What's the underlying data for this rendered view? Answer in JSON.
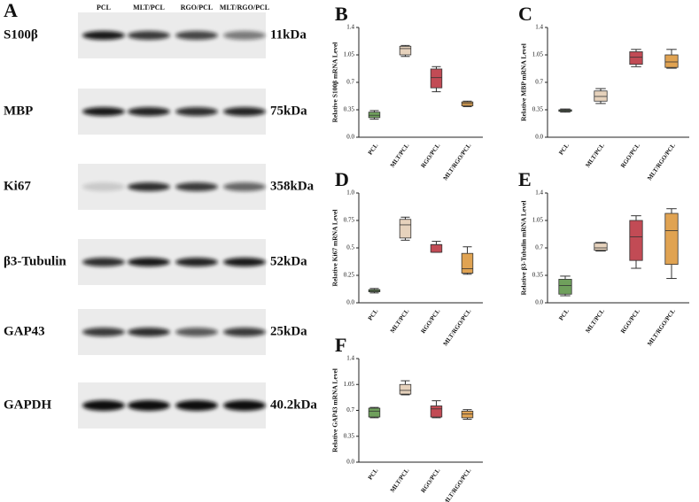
{
  "blot": {
    "panel": "A",
    "lanes": [
      "PCL",
      "MLT/PCL",
      "RGO/PCL",
      "MLT/RGO/PCL"
    ],
    "rows": [
      {
        "label": "S100β",
        "size": "11kDa"
      },
      {
        "label": "MBP",
        "size": "75kDa"
      },
      {
        "label": "Ki67",
        "size": "358kDa"
      },
      {
        "label": "β3-Tubulin",
        "size": "52kDa"
      },
      {
        "label": "GAP43",
        "size": "25kDa"
      },
      {
        "label": "GAPDH",
        "size": "40.2kDa"
      }
    ]
  },
  "chart_data": [
    {
      "type": "box",
      "panel": "B",
      "ylabel": "Relative S100β mRNA Level",
      "categories": [
        "PCL",
        "MLT/PCL",
        "RGO/PCL",
        "MLT/RGO/PCL"
      ],
      "colors": [
        "#6fa05c",
        "#e6d2bc",
        "#c24b55",
        "#e0a352"
      ],
      "boxes": [
        [
          0.23,
          0.25,
          0.28,
          0.32,
          0.34
        ],
        [
          1.03,
          1.05,
          1.13,
          1.16,
          1.17
        ],
        [
          0.58,
          0.63,
          0.76,
          0.87,
          0.9
        ],
        [
          0.39,
          0.4,
          0.43,
          0.45,
          0.46
        ]
      ],
      "ylim": [
        0,
        1.4
      ],
      "yticks": [
        {
          "value": 0,
          "label": "0.0"
        },
        0.35,
        0.7,
        1.05,
        1.4
      ]
    },
    {
      "type": "box",
      "panel": "C",
      "ylabel": "Relative MBP mRNA Level",
      "categories": [
        "PCL",
        "MLT/PCL",
        "RGO/PCL",
        "MLT/RGO/PCL"
      ],
      "colors": [
        "#6fa05c",
        "#e6d2bc",
        "#c24b55",
        "#e0a352"
      ],
      "boxes": [
        [
          0.32,
          0.33,
          0.34,
          0.35,
          0.36
        ],
        [
          0.43,
          0.46,
          0.52,
          0.59,
          0.62
        ],
        [
          0.9,
          0.93,
          1.02,
          1.09,
          1.12
        ],
        [
          0.88,
          0.89,
          0.96,
          1.05,
          1.12
        ]
      ],
      "ylim": [
        0,
        1.4
      ],
      "yticks": [
        {
          "value": 0,
          "label": "0.0"
        },
        0.35,
        0.7,
        1.05,
        1.4
      ]
    },
    {
      "type": "box",
      "panel": "D",
      "ylabel": "Relative Ki67 mRNA Level",
      "categories": [
        "PCL",
        "MLT/PCL",
        "RGO/PCL",
        "MLT/RGO/PCL"
      ],
      "colors": [
        "#6fa05c",
        "#e6d2bc",
        "#c24b55",
        "#e0a352"
      ],
      "boxes": [
        [
          0.09,
          0.1,
          0.11,
          0.12,
          0.13
        ],
        [
          0.57,
          0.59,
          0.71,
          0.76,
          0.78
        ],
        [
          0.46,
          0.46,
          0.53,
          0.53,
          0.56
        ],
        [
          0.26,
          0.27,
          0.31,
          0.45,
          0.51
        ]
      ],
      "ylim": [
        0,
        1
      ],
      "yticks": [
        {
          "value": 0,
          "label": "0.0"
        },
        0.25,
        0.5,
        0.75,
        {
          "value": 1,
          "label": "1.0"
        }
      ]
    },
    {
      "type": "box",
      "panel": "E",
      "ylabel": "Relative β3-Tubulin mRNA Level",
      "categories": [
        "PCL",
        "MLT/PCL",
        "RGO/PCL",
        "MLT/RGO/PCL"
      ],
      "colors": [
        "#6fa05c",
        "#e6d2bc",
        "#c24b55",
        "#e0a352"
      ],
      "boxes": [
        [
          0.09,
          0.11,
          0.22,
          0.3,
          0.34
        ],
        [
          0.66,
          0.67,
          0.7,
          0.76,
          0.77
        ],
        [
          0.44,
          0.54,
          0.84,
          1.05,
          1.11
        ],
        [
          0.31,
          0.49,
          0.92,
          1.14,
          1.2
        ]
      ],
      "ylim": [
        0,
        1.4
      ],
      "yticks": [
        {
          "value": 0,
          "label": "0.0"
        },
        0.35,
        0.7,
        1.05,
        1.4
      ]
    },
    {
      "type": "box",
      "panel": "F",
      "ylabel": "Relative GAP43 mRNA Level",
      "categories": [
        "PCL",
        "MLT/PCL",
        "RGO/PCL",
        "MLT/RGO/PCL"
      ],
      "colors": [
        "#6fa05c",
        "#e6d2bc",
        "#c24b55",
        "#e0a352"
      ],
      "boxes": [
        [
          0.6,
          0.61,
          0.69,
          0.73,
          0.74
        ],
        [
          0.91,
          0.92,
          0.97,
          1.05,
          1.1
        ],
        [
          0.6,
          0.61,
          0.72,
          0.76,
          0.83
        ],
        [
          0.58,
          0.6,
          0.65,
          0.69,
          0.71
        ]
      ],
      "ylim": [
        0,
        1.4
      ],
      "yticks": [
        {
          "value": 0,
          "label": "0.0"
        },
        0.35,
        0.7,
        1.05,
        1.4
      ]
    }
  ]
}
